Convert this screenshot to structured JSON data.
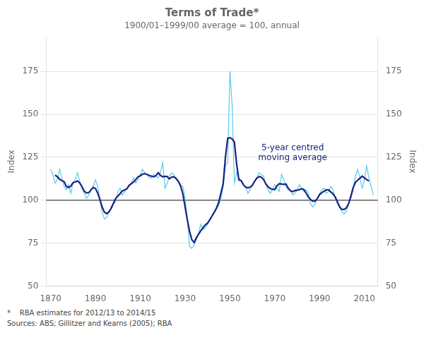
{
  "chart_data": {
    "type": "line",
    "title": "Terms of Trade*",
    "subtitle": "1900/01–1999/00 average = 100, annual",
    "ylabel": "Index",
    "y2label": "Index",
    "footnotes": [
      "*    RBA estimates for 2012/13 to 2014/15",
      "Sources: ABS; Gillitzer and Kearns (2005); RBA"
    ],
    "annotations": [
      {
        "text": "5-year centred\nmoving average",
        "x": 1978,
        "y": 133,
        "color": "#1A237E"
      }
    ],
    "hlines": [
      {
        "value": 100,
        "color": "#444444"
      }
    ],
    "xlim": [
      1868,
      2016
    ],
    "xticks": [
      1870,
      1890,
      1910,
      1930,
      1950,
      1970,
      1990,
      2010
    ],
    "ylim": [
      50,
      195
    ],
    "yticks": [
      50,
      75,
      100,
      125,
      150,
      175
    ],
    "y2lim": [
      50,
      195
    ],
    "y2ticks": [
      50,
      75,
      100,
      125,
      150,
      175
    ],
    "grid": "y",
    "x": [
      1870,
      1871,
      1872,
      1873,
      1874,
      1875,
      1876,
      1877,
      1878,
      1879,
      1880,
      1881,
      1882,
      1883,
      1884,
      1885,
      1886,
      1887,
      1888,
      1889,
      1890,
      1891,
      1892,
      1893,
      1894,
      1895,
      1896,
      1897,
      1898,
      1899,
      1900,
      1901,
      1902,
      1903,
      1904,
      1905,
      1906,
      1907,
      1908,
      1909,
      1910,
      1911,
      1912,
      1913,
      1914,
      1915,
      1916,
      1917,
      1918,
      1919,
      1920,
      1921,
      1922,
      1923,
      1924,
      1925,
      1926,
      1927,
      1928,
      1929,
      1930,
      1931,
      1932,
      1933,
      1934,
      1935,
      1936,
      1937,
      1938,
      1939,
      1940,
      1941,
      1942,
      1943,
      1944,
      1945,
      1946,
      1947,
      1948,
      1949,
      1950,
      1951,
      1952,
      1953,
      1954,
      1955,
      1956,
      1957,
      1958,
      1959,
      1960,
      1961,
      1962,
      1963,
      1964,
      1965,
      1966,
      1967,
      1968,
      1969,
      1970,
      1971,
      1972,
      1973,
      1974,
      1975,
      1976,
      1977,
      1978,
      1979,
      1980,
      1981,
      1982,
      1983,
      1984,
      1985,
      1986,
      1987,
      1988,
      1989,
      1990,
      1991,
      1992,
      1993,
      1994,
      1995,
      1996,
      1997,
      1998,
      1999,
      2000,
      2001,
      2002,
      2003,
      2004,
      2005,
      2006,
      2007,
      2008,
      2009,
      2010,
      2011,
      2012,
      2013,
      2014
    ],
    "series": [
      {
        "color": "#55CCEE",
        "values": [
          118,
          115,
          110,
          112,
          118,
          113,
          108,
          106,
          109,
          104,
          110,
          112,
          116,
          111,
          107,
          104,
          101,
          103,
          106,
          108,
          112,
          108,
          100,
          93,
          89,
          90,
          93,
          96,
          98,
          99,
          105,
          107,
          103,
          105,
          107,
          108,
          110,
          113,
          110,
          112,
          115,
          118,
          116,
          115,
          113,
          113,
          115,
          114,
          113,
          116,
          122,
          107,
          110,
          114,
          116,
          115,
          112,
          111,
          109,
          108,
          101,
          89,
          73,
          72,
          74,
          77,
          81,
          86,
          83,
          84,
          86,
          89,
          91,
          93,
          95,
          97,
          101,
          108,
          120,
          122,
          175,
          155,
          110,
          116,
          113,
          111,
          109,
          108,
          104,
          106,
          109,
          111,
          113,
          116,
          115,
          114,
          109,
          106,
          104,
          106,
          109,
          107,
          105,
          115,
          112,
          108,
          106,
          106,
          103,
          104,
          106,
          109,
          107,
          105,
          106,
          104,
          98,
          96,
          98,
          101,
          104,
          106,
          107,
          104,
          105,
          108,
          106,
          101,
          98,
          96,
          93,
          92,
          94,
          98,
          101,
          106,
          114,
          118,
          113,
          107,
          112,
          120,
          113,
          108,
          103
        ]
      },
      {
        "color": "#1A237E",
        "values": [
          null,
          null,
          114.6,
          113.6,
          112.2,
          111.4,
          110.8,
          108,
          107.4,
          108.2,
          110.2,
          110.6,
          111.2,
          110,
          107.8,
          105.2,
          104.2,
          104.4,
          106,
          107.4,
          106.8,
          104.2,
          100.4,
          96,
          93,
          92.2,
          93.2,
          95.2,
          98.2,
          101,
          102.4,
          103.8,
          105.4,
          106,
          106.6,
          108.6,
          109.6,
          110.6,
          112,
          113.6,
          114.2,
          115.2,
          115.4,
          115,
          114.4,
          114,
          113.6,
          114.2,
          116,
          114.4,
          113.6,
          113.8,
          113.8,
          112.4,
          113.4,
          113.6,
          112.6,
          111,
          108.2,
          103.6,
          96,
          88.6,
          81.8,
          77,
          75.4,
          78,
          80.2,
          82.2,
          84,
          85.6,
          86.6,
          88.6,
          90.8,
          93,
          95.4,
          98.8,
          104.2,
          109.6,
          125.2,
          136,
          136.4,
          135.6,
          133.8,
          121,
          111.8,
          111.4,
          109,
          107.6,
          107.2,
          107.6,
          108.6,
          111,
          112.8,
          113.8,
          113.4,
          112,
          109.6,
          107.8,
          106.8,
          106.4,
          106.2,
          108.4,
          109.6,
          109.4,
          109.2,
          109.4,
          107,
          105.4,
          105,
          105.6,
          105.8,
          106.2,
          106.6,
          106.2,
          104,
          101.8,
          100.4,
          99.4,
          99.4,
          101,
          103.2,
          104.4,
          105.2,
          106,
          106,
          104.8,
          103.6,
          101.8,
          98.8,
          96,
          94.6,
          94.6,
          95.6,
          98.2,
          102.6,
          107.4,
          110.4,
          111.6,
          112.8,
          114,
          113,
          112,
          111.2,
          null,
          null
        ]
      }
    ]
  }
}
